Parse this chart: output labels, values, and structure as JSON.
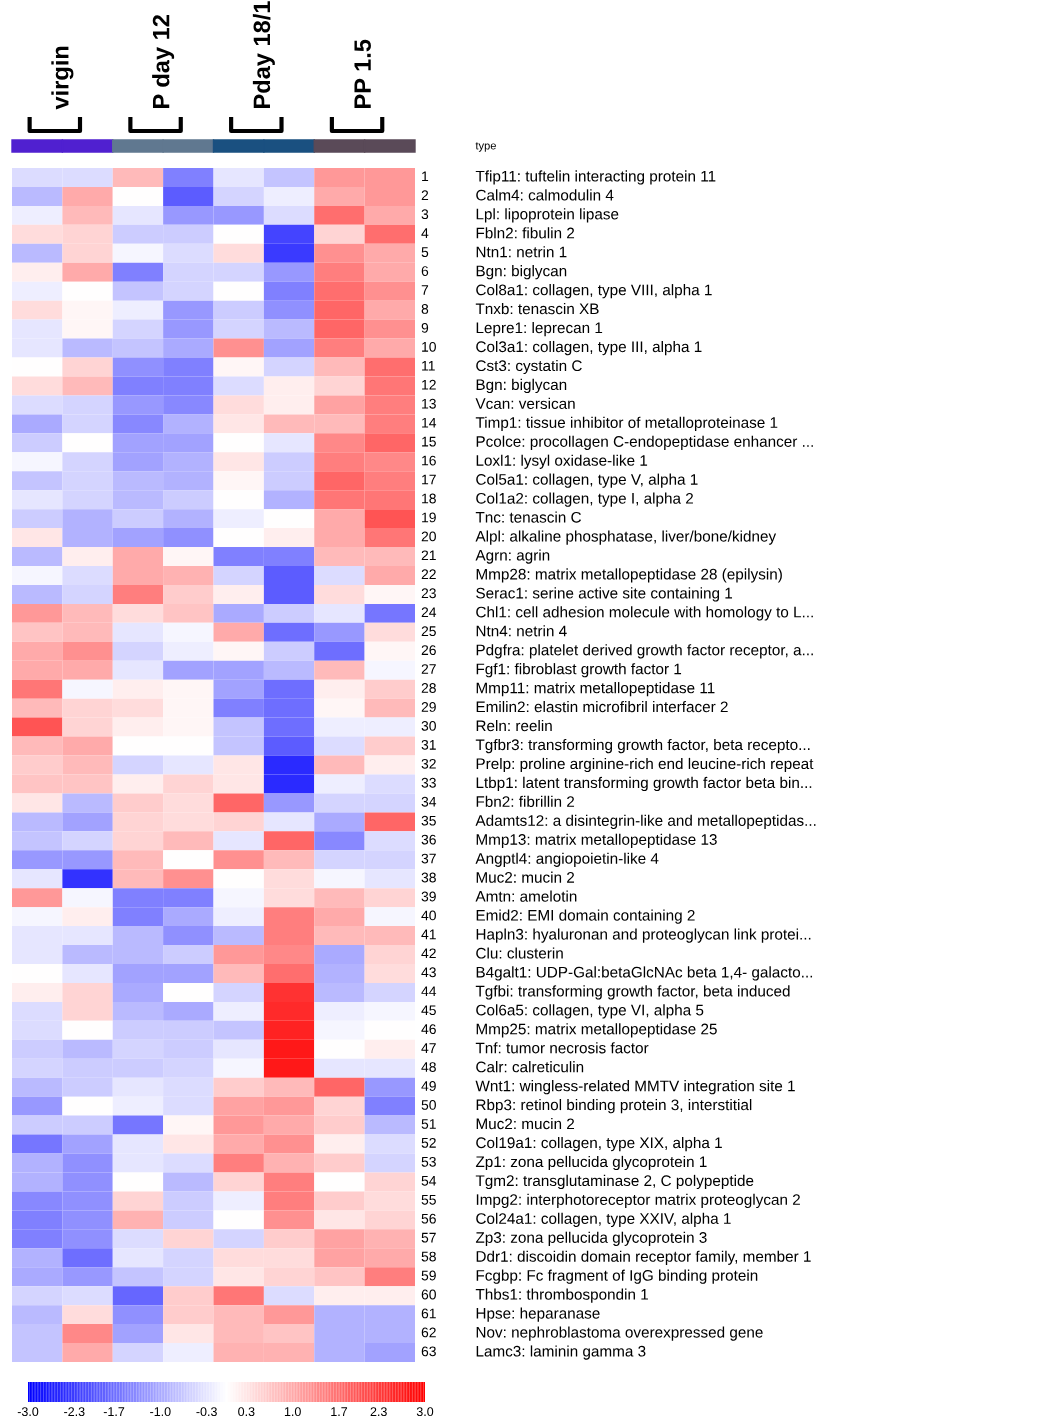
{
  "chart_data": {
    "type": "heatmap",
    "categories": [
      null,
      null,
      null,
      null,
      null,
      null,
      null,
      null
    ],
    "y2_categories": [
      "Tfip11: tuftelin interacting protein 11",
      "Calm4: calmodulin 4",
      "Lpl: lipoprotein lipase",
      "Fbln2: fibulin 2",
      "Ntn1: netrin 1",
      "Bgn: biglycan",
      "Col8a1: collagen, type VIII, alpha 1",
      "Tnxb: tenascin XB",
      "Lepre1: leprecan 1",
      "Col3a1: collagen, type III, alpha 1",
      "Cst3: cystatin C",
      "Bgn: biglycan",
      "Vcan: versican",
      "Timp1: tissue inhibitor of metalloproteinase 1",
      "Pcolce: procollagen C-endopeptidase enhancer ...",
      "Loxl1: lysyl oxidase-like 1",
      "Col5a1: collagen, type V, alpha 1",
      "Col1a2: collagen, type I, alpha 2",
      "Tnc: tenascin C",
      "Alpl: alkaline phosphatase, liver/bone/kidney",
      "Agrn: agrin",
      "Mmp28: matrix metallopeptidase 28 (epilysin)",
      "Serac1: serine active site containing 1",
      "Chl1: cell adhesion molecule with homology to L...",
      "Ntn4: netrin 4",
      "Pdgfra: platelet derived growth factor receptor, a...",
      "Fgf1: fibroblast growth factor 1",
      "Mmp11: matrix metallopeptidase 11",
      "Emilin2: elastin microfibril interfacer 2",
      "Reln: reelin",
      "Tgfbr3: transforming growth factor, beta recepto...",
      "Prelp: proline arginine-rich end leucine-rich repeat",
      "Ltbp1: latent transforming growth factor beta bin...",
      "Fbn2: fibrillin 2",
      "Adamts12: a disintegrin-like and metallopeptidas...",
      "Mmp13: matrix metallopeptidase 13",
      "Angptl4: angiopoietin-like 4",
      "Muc2: mucin 2",
      "Amtn: amelotin",
      "Emid2: EMI domain containing 2",
      "Hapln3: hyaluronan and proteoglycan link protei...",
      "Clu: clusterin",
      "B4galt1: UDP-Gal:betaGlcNAc beta 1,4- galacto...",
      "Tgfbi: transforming growth factor, beta induced",
      "Col6a5: collagen, type VI, alpha 5",
      "Mmp25: matrix metallopeptidase 25",
      "Tnf: tumor necrosis factor",
      "Calr: calreticulin",
      "Wnt1: wingless-related MMTV integration site 1",
      "Rbp3: retinol binding protein 3, interstitial",
      "Muc2: mucin 2",
      "Col19a1: collagen, type XIX, alpha 1",
      "Zp1: zona pellucida glycoprotein 1",
      "Tgm2: transglutaminase 2, C polypeptide",
      "Impg2: interphotoreceptor matrix proteoglycan 2",
      "Col24a1: collagen, type XXIV, alpha 1",
      "Zp3: zona pellucida glycoprotein 3",
      "Ddr1: discoidin domain receptor family, member 1",
      "Fcgbp: Fc fragment of IgG binding protein",
      "Thbs1: thrombospondin 1",
      "Hpse: heparanase",
      "Nov: nephroblastoma overexpressed gene",
      "Lamc3: laminin gamma 3"
    ],
    "y_categories": [
      "1",
      "2",
      "3",
      "4",
      "5",
      "6",
      "7",
      "8",
      "9",
      "10",
      "11",
      "12",
      "13",
      "14",
      "15",
      "16",
      "17",
      "18",
      "19",
      "20",
      "21",
      "22",
      "23",
      "24",
      "25",
      "26",
      "27",
      "28",
      "29",
      "30",
      "31",
      "32",
      "33",
      "34",
      "35",
      "36",
      "37",
      "38",
      "39",
      "40",
      "41",
      "42",
      "43",
      "44",
      "45",
      "46",
      "47",
      "48",
      "49",
      "50",
      "51",
      "52",
      "53",
      "54",
      "55",
      "56",
      "57",
      "58",
      "59",
      "60",
      "61",
      "62",
      "63"
    ],
    "cells": [
      [
        -0.4,
        -0.4,
        0.8,
        -1.5,
        -0.3,
        -0.7,
        1.2,
        1.2
      ],
      [
        -0.8,
        1.0,
        0.0,
        -1.9,
        -0.5,
        -0.2,
        1.0,
        1.2
      ],
      [
        -0.2,
        0.8,
        -0.3,
        -1.2,
        -1.2,
        -0.4,
        1.7,
        1.0
      ],
      [
        0.4,
        0.5,
        -0.6,
        -0.6,
        0.0,
        -2.2,
        0.5,
        1.7
      ],
      [
        -0.8,
        0.5,
        -0.1,
        -0.4,
        0.4,
        -2.3,
        1.3,
        1.0
      ],
      [
        0.2,
        1.0,
        -1.5,
        -0.5,
        -0.5,
        -1.2,
        1.5,
        1.0
      ],
      [
        -0.2,
        0.0,
        -0.7,
        -0.5,
        0.0,
        -1.5,
        1.7,
        1.3
      ],
      [
        0.4,
        0.1,
        -0.2,
        -1.2,
        -0.6,
        -1.3,
        1.8,
        1.0
      ],
      [
        -0.3,
        0.1,
        -0.5,
        -1.2,
        -0.5,
        -0.8,
        1.8,
        1.3
      ],
      [
        -0.3,
        -0.8,
        -0.7,
        -1.0,
        1.3,
        -1.1,
        1.5,
        1.0
      ],
      [
        0.0,
        0.5,
        -1.3,
        -1.5,
        0.1,
        -0.5,
        0.8,
        1.7
      ],
      [
        0.4,
        0.8,
        -1.5,
        -1.5,
        -0.4,
        0.2,
        0.5,
        1.6
      ],
      [
        -0.4,
        -0.5,
        -1.2,
        -1.4,
        0.4,
        0.2,
        1.1,
        1.5
      ],
      [
        -1.0,
        -0.5,
        -1.4,
        -0.9,
        0.3,
        0.8,
        0.8,
        1.5
      ],
      [
        -0.6,
        0.0,
        -1.1,
        -1.1,
        0.0,
        -0.3,
        1.4,
        1.8
      ],
      [
        -0.1,
        -0.5,
        -1.1,
        -0.9,
        0.3,
        -0.6,
        1.5,
        1.4
      ],
      [
        -0.7,
        -0.5,
        -0.8,
        -0.9,
        0.1,
        -0.6,
        1.8,
        1.5
      ],
      [
        -0.3,
        -0.5,
        -0.8,
        -0.6,
        0.0,
        -0.9,
        1.6,
        1.6
      ],
      [
        -0.6,
        -0.9,
        -0.6,
        -0.9,
        -0.2,
        0.0,
        1.0,
        2.0
      ],
      [
        0.3,
        -0.9,
        -1.1,
        -1.3,
        0.0,
        0.2,
        1.0,
        1.6
      ],
      [
        -0.8,
        0.2,
        1.0,
        0.1,
        -1.5,
        -1.5,
        0.8,
        0.8
      ],
      [
        -0.1,
        -0.4,
        1.0,
        0.9,
        -0.5,
        -1.9,
        -0.4,
        1.0
      ],
      [
        -0.8,
        -0.5,
        1.5,
        0.6,
        0.2,
        -1.9,
        0.4,
        0.1
      ],
      [
        1.2,
        0.8,
        0.4,
        0.7,
        -1.0,
        -0.6,
        -0.3,
        -1.6
      ],
      [
        0.7,
        0.8,
        -0.3,
        -0.1,
        1.0,
        -1.7,
        -1.2,
        0.4
      ],
      [
        1.0,
        1.3,
        -0.5,
        -0.2,
        0.1,
        -0.6,
        -1.7,
        0.1
      ],
      [
        1.0,
        1.0,
        -0.3,
        -1.1,
        -1.1,
        -0.8,
        0.8,
        -0.1
      ],
      [
        1.6,
        -0.1,
        0.2,
        0.1,
        -1.1,
        -1.7,
        0.2,
        0.6
      ],
      [
        0.8,
        0.5,
        0.4,
        0.1,
        -1.5,
        -1.7,
        0.1,
        0.8
      ],
      [
        2.0,
        0.5,
        0.2,
        0.1,
        -0.7,
        -1.7,
        -0.2,
        -0.2
      ],
      [
        0.8,
        1.0,
        0.0,
        0.0,
        -0.7,
        -1.9,
        -0.4,
        0.6
      ],
      [
        0.6,
        0.8,
        -0.5,
        -0.3,
        0.3,
        -2.5,
        0.8,
        0.2
      ],
      [
        0.7,
        0.7,
        0.2,
        0.5,
        0.3,
        -2.5,
        -0.2,
        -0.4
      ],
      [
        0.3,
        -0.8,
        0.6,
        0.4,
        1.8,
        -1.2,
        -0.5,
        -0.5
      ],
      [
        -0.8,
        -1.1,
        0.5,
        0.4,
        0.5,
        -0.3,
        -1.0,
        1.8
      ],
      [
        -0.7,
        -0.5,
        0.5,
        0.8,
        -0.3,
        1.8,
        -1.4,
        -0.4
      ],
      [
        -1.2,
        -1.2,
        0.8,
        0.0,
        1.3,
        0.8,
        -0.5,
        -0.5
      ],
      [
        -0.3,
        -2.4,
        0.8,
        1.3,
        0.0,
        0.4,
        -0.1,
        -0.3
      ],
      [
        1.2,
        -0.1,
        -1.5,
        -1.5,
        -0.1,
        0.4,
        0.8,
        0.5
      ],
      [
        -0.1,
        0.2,
        -1.5,
        -1.0,
        -0.2,
        1.5,
        1.0,
        -0.1
      ],
      [
        -0.3,
        -0.3,
        -0.8,
        -1.3,
        -0.8,
        1.5,
        0.8,
        0.8
      ],
      [
        -0.3,
        -0.8,
        -0.8,
        -0.6,
        1.2,
        1.4,
        -1.0,
        0.5
      ],
      [
        0.0,
        -0.3,
        -1.1,
        -1.1,
        0.8,
        1.7,
        -0.9,
        0.4
      ],
      [
        0.2,
        0.5,
        -1.0,
        0.0,
        -0.5,
        2.4,
        -0.8,
        -0.5
      ],
      [
        -0.4,
        0.5,
        -0.8,
        -1.0,
        -0.2,
        2.5,
        -0.2,
        -0.1
      ],
      [
        -0.4,
        0.0,
        -0.6,
        -0.6,
        -0.7,
        2.6,
        -0.1,
        0.0
      ],
      [
        -0.6,
        -0.8,
        -0.5,
        -0.6,
        -0.3,
        2.7,
        0.0,
        0.2
      ],
      [
        -0.5,
        -0.6,
        -0.6,
        -0.5,
        -0.1,
        2.7,
        -0.3,
        -0.3
      ],
      [
        -0.8,
        -0.6,
        -0.3,
        -0.4,
        0.6,
        0.8,
        1.8,
        -1.2
      ],
      [
        -1.2,
        0.0,
        -0.2,
        -0.4,
        1.1,
        1.2,
        0.5,
        -1.5
      ],
      [
        -0.6,
        -0.6,
        -1.6,
        0.1,
        1.2,
        1.0,
        0.6,
        -0.8
      ],
      [
        -1.6,
        -1.1,
        -0.3,
        0.3,
        1.0,
        1.3,
        0.2,
        -0.4
      ],
      [
        -0.9,
        -1.3,
        -0.3,
        -0.4,
        1.5,
        0.9,
        0.6,
        -0.5
      ],
      [
        -0.9,
        -1.3,
        0.0,
        -0.8,
        0.5,
        1.5,
        0.0,
        0.5
      ],
      [
        -1.4,
        -1.3,
        0.5,
        -0.6,
        -0.2,
        1.5,
        0.6,
        0.4
      ],
      [
        -1.5,
        -1.3,
        0.9,
        -0.6,
        0.0,
        1.3,
        0.3,
        0.5
      ],
      [
        -1.5,
        -1.3,
        -0.4,
        0.5,
        -0.5,
        0.6,
        1.1,
        0.9
      ],
      [
        -0.9,
        -1.7,
        -0.3,
        -0.5,
        0.4,
        0.4,
        1.1,
        1.0
      ],
      [
        -1.0,
        -1.2,
        -0.7,
        -0.5,
        0.3,
        0.5,
        0.7,
        1.5
      ],
      [
        -0.5,
        -0.4,
        -1.8,
        0.6,
        1.6,
        -0.4,
        0.2,
        0.2
      ],
      [
        -0.8,
        0.4,
        -1.3,
        0.6,
        0.8,
        1.2,
        -0.9,
        -0.9
      ],
      [
        -0.7,
        1.4,
        -1.1,
        0.3,
        0.8,
        0.7,
        -0.9,
        -0.9
      ],
      [
        -0.7,
        1.0,
        -0.5,
        -0.2,
        0.9,
        0.9,
        -0.9,
        -1.1
      ]
    ],
    "clim": [
      -3,
      3
    ],
    "cticks": [
      {
        "value": -3,
        "label": "-3.0"
      },
      {
        "value": -2.3,
        "label": "-2.3"
      },
      {
        "value": -1.7,
        "label": "-1.7"
      },
      {
        "value": -1,
        "label": "-1.0"
      },
      {
        "value": -0.3,
        "label": "-0.3"
      },
      {
        "value": 0.3,
        "label": "0.3"
      },
      {
        "value": 1,
        "label": "1.0"
      },
      {
        "value": 1.7,
        "label": "1.7"
      },
      {
        "value": 2.3,
        "label": "2.3"
      },
      {
        "value": 3,
        "label": "3.0"
      }
    ],
    "annotations": [
      "virgin",
      "P day 12",
      "Pday 18/1",
      "PP 1.5",
      "type"
    ]
  }
}
